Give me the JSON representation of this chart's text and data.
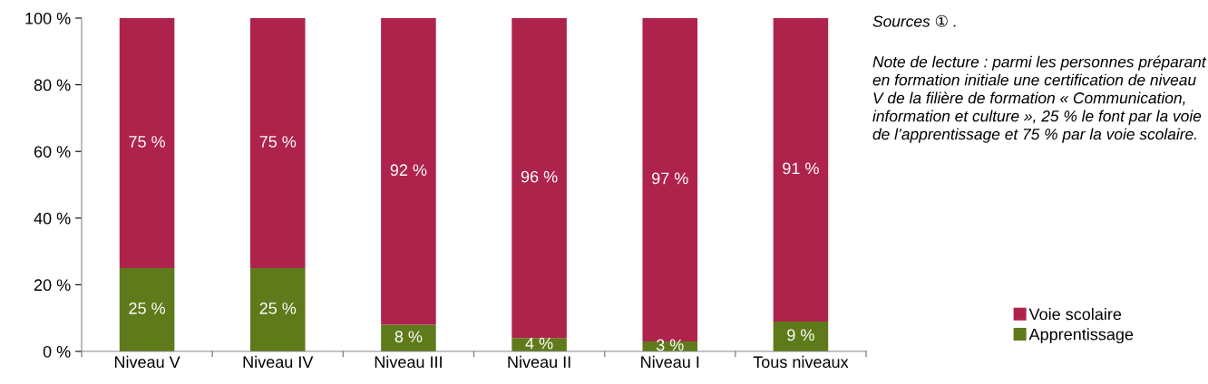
{
  "chart_data": {
    "type": "bar",
    "stacked": true,
    "categories": [
      "Niveau V",
      "Niveau IV",
      "Niveau III",
      "Niveau II",
      "Niveau I",
      "Tous niveaux"
    ],
    "series": [
      {
        "name": "Apprentissage",
        "color": "#5f7a1a",
        "values": [
          25,
          25,
          8,
          4,
          3,
          9
        ],
        "value_labels": [
          "25 %",
          "25 %",
          "8 %",
          "4 %",
          "3 %",
          "9 %"
        ]
      },
      {
        "name": "Voie scolaire",
        "color": "#ae234c",
        "values": [
          75,
          75,
          92,
          96,
          97,
          91
        ],
        "value_labels": [
          "75 %",
          "75 %",
          "92 %",
          "96 %",
          "97 %",
          "91 %"
        ]
      }
    ],
    "ylim": [
      0,
      100
    ],
    "yticks": [
      {
        "value": 0,
        "label": "0 %"
      },
      {
        "value": 20,
        "label": "20 %"
      },
      {
        "value": 40,
        "label": "40 %"
      },
      {
        "value": 60,
        "label": "60 %"
      },
      {
        "value": 80,
        "label": "80 %"
      },
      {
        "value": 100,
        "label": "100 %"
      }
    ],
    "grid": false,
    "legend": "bottom right",
    "annotations": [
      "Sources ① .",
      "Note de lecture : parmi les personnes préparant en formation initiale une certification de niveau V de la filière de formation « Communication, information et culture », 25 % le font par la voie de l’apprentissage et 75 % par la voie scolaire."
    ]
  }
}
